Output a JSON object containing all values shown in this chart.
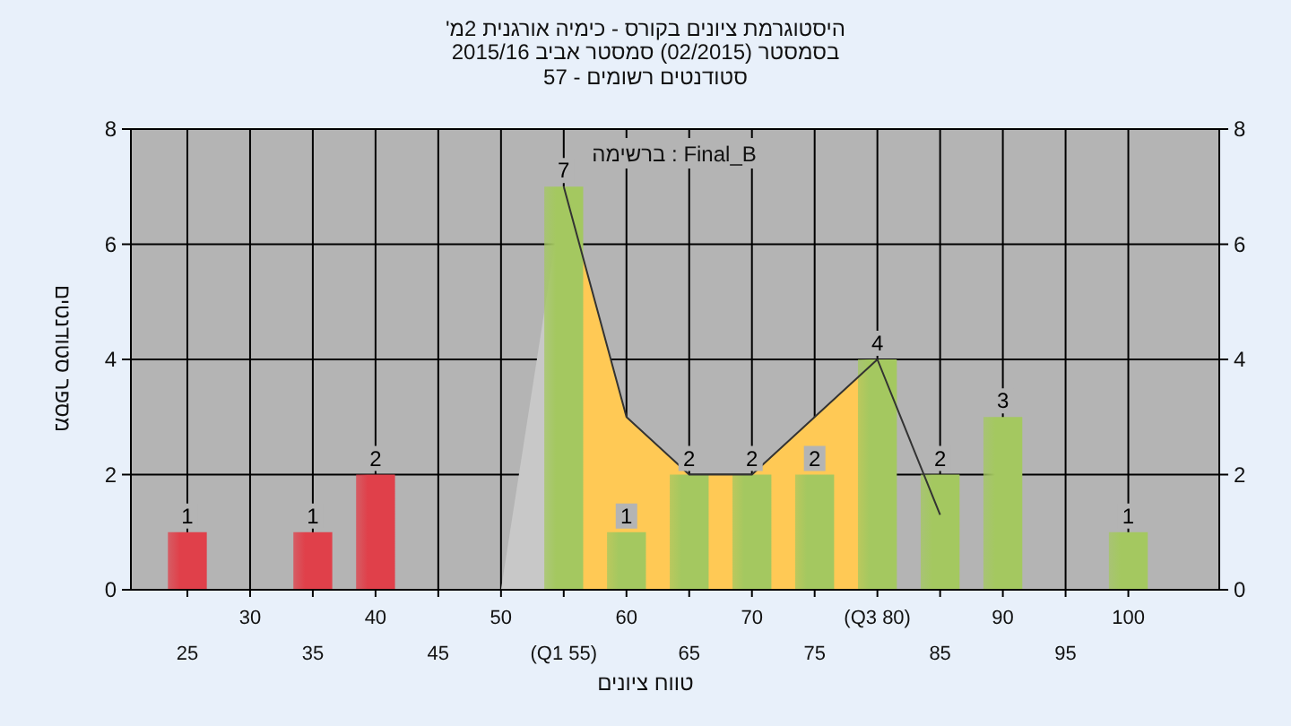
{
  "chart_data": {
    "type": "bar",
    "title": "היסטוגרמת ציונים בקורס - כימיה אורגנית 2מ'",
    "subtitle": "בסמסטר (02/2015) סמסטר אביב 2015/16",
    "annotations": [
      "סטודנטים רשומים - 57",
      "ברשימה : Final_B"
    ],
    "xlabel": "טווח ציונים",
    "ylabel": "מספר סטודנטים",
    "categories": [
      "25",
      "30",
      "35",
      "40",
      "45",
      "50",
      "(Q1 55)",
      "60",
      "65",
      "70",
      "75",
      "(Q3 80)",
      "85",
      "90",
      "95",
      "100"
    ],
    "series": [
      {
        "type": "area",
        "color": "#c8c8c8",
        "values": [
          null,
          null,
          null,
          null,
          null,
          0,
          7,
          null,
          null,
          null,
          null,
          null,
          null,
          null,
          null,
          null
        ]
      },
      {
        "type": "area",
        "color": "#ffc955",
        "values": [
          null,
          null,
          null,
          null,
          null,
          null,
          7,
          3,
          2,
          2,
          3,
          4,
          null,
          null,
          null,
          null
        ]
      },
      {
        "colors": [
          "#e0404a",
          "#e0404a",
          "#e0404a",
          "#e0404a",
          "#e0404a",
          "#e0404a",
          "#a4c860",
          "#a4c860",
          "#a4c860",
          "#a4c860",
          "#a4c860",
          "#a4c860",
          "#a4c860",
          "#a4c860",
          "#a4c860",
          "#a4c860"
        ],
        "values": [
          1,
          0,
          1,
          2,
          0,
          0,
          7,
          1,
          2,
          2,
          2,
          4,
          2,
          3,
          0,
          1
        ],
        "value_labels": [
          "1",
          null,
          "1",
          "2",
          null,
          null,
          "7",
          "1",
          "2",
          "2",
          "2",
          "4",
          "2",
          "3",
          null,
          "1"
        ]
      },
      {
        "type": "line",
        "color": "#333333",
        "values": [
          null,
          null,
          null,
          null,
          null,
          null,
          7,
          3,
          2,
          2,
          3,
          4,
          1.3,
          null,
          null,
          null
        ]
      }
    ],
    "ylim": [
      0,
      8
    ],
    "yticks": [
      0,
      2,
      4,
      6,
      8
    ],
    "y2lim": [
      0,
      8
    ],
    "y2ticks": [
      0,
      2,
      4,
      6,
      8
    ],
    "grid": true
  }
}
